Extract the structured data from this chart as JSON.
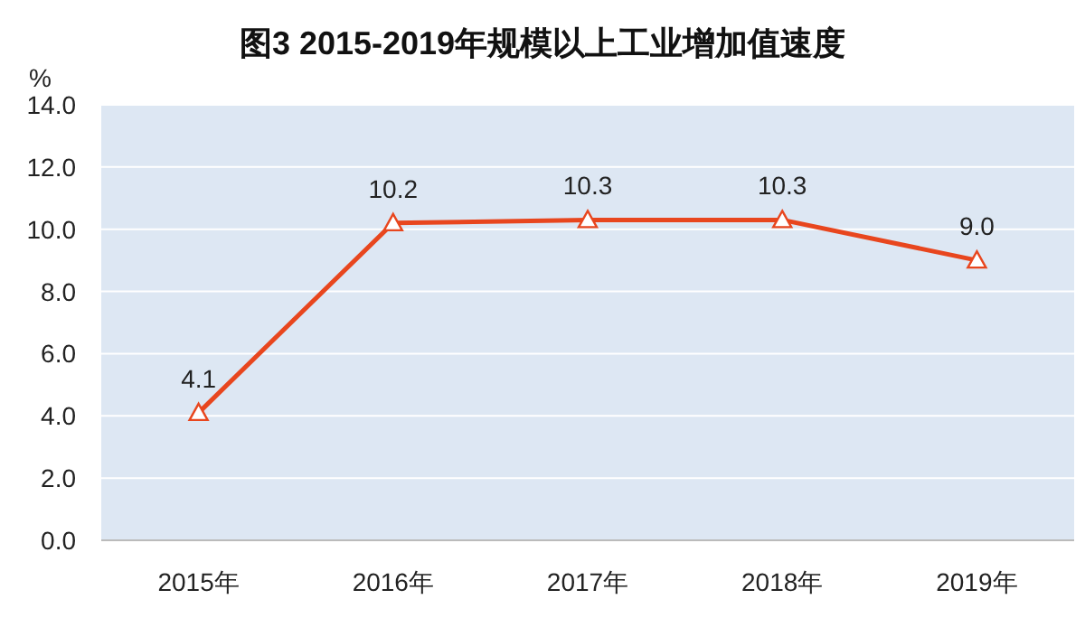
{
  "chart_data": {
    "type": "line",
    "title": "图3  2015-2019年规模以上工业增加值速度",
    "ylabel": "%",
    "categories": [
      "2015年",
      "2016年",
      "2017年",
      "2018年",
      "2019年"
    ],
    "series": [
      {
        "color": "#e8461e",
        "values": [
          4.1,
          10.2,
          10.3,
          10.3,
          9.0
        ],
        "value_labels": [
          "4.1",
          "10.2",
          "10.3",
          "10.3",
          "9.0"
        ]
      }
    ],
    "ylim": [
      0,
      14
    ],
    "yticks": [
      {
        "value": 0,
        "label": "0.0"
      },
      {
        "value": 2,
        "label": "2.0"
      },
      {
        "value": 4,
        "label": "4.0"
      },
      {
        "value": 6,
        "label": "6.0"
      },
      {
        "value": 8,
        "label": "8.0"
      },
      {
        "value": 10,
        "label": "10.0"
      },
      {
        "value": 12,
        "label": "12.0"
      },
      {
        "value": 14,
        "label": "14.0"
      }
    ],
    "grid": "y",
    "marker": "triangle",
    "line_style": "solid"
  }
}
